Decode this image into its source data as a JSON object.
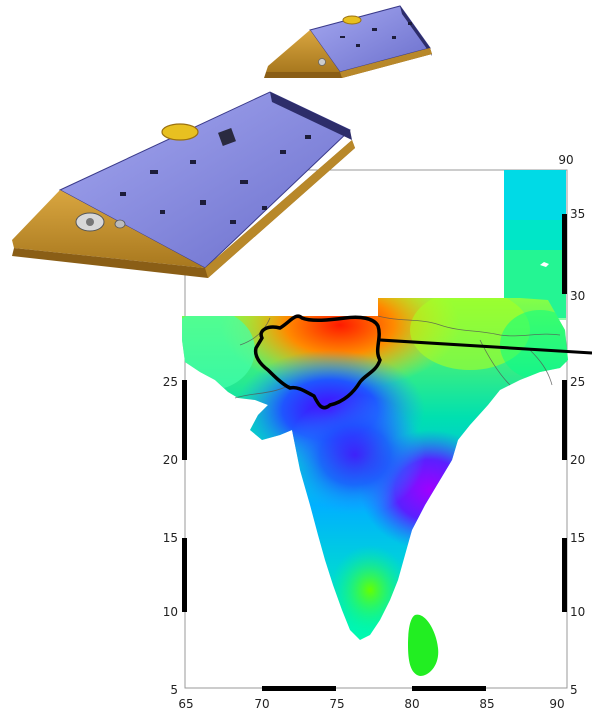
{
  "map": {
    "x_ticks": [
      "65",
      "70",
      "75",
      "80",
      "85",
      "90"
    ],
    "y_ticks_left": [
      "25",
      "20",
      "15",
      "10",
      "5"
    ],
    "y_ticks_right": [
      "35",
      "30",
      "25",
      "20",
      "15",
      "10",
      "5"
    ],
    "top_tick": "90",
    "colormap": [
      "#ff0000",
      "#ff8c00",
      "#ffee00",
      "#7dff00",
      "#00ff66",
      "#00e5e5",
      "#0066ff",
      "#4b00ff",
      "#a400ff"
    ],
    "highlight_region": "Rajasthan-outline",
    "pointer_line": true
  },
  "satellites": {
    "count": 2,
    "colors": {
      "solar_panel": "#8a8de0",
      "side_foil": "#c8962c"
    }
  }
}
